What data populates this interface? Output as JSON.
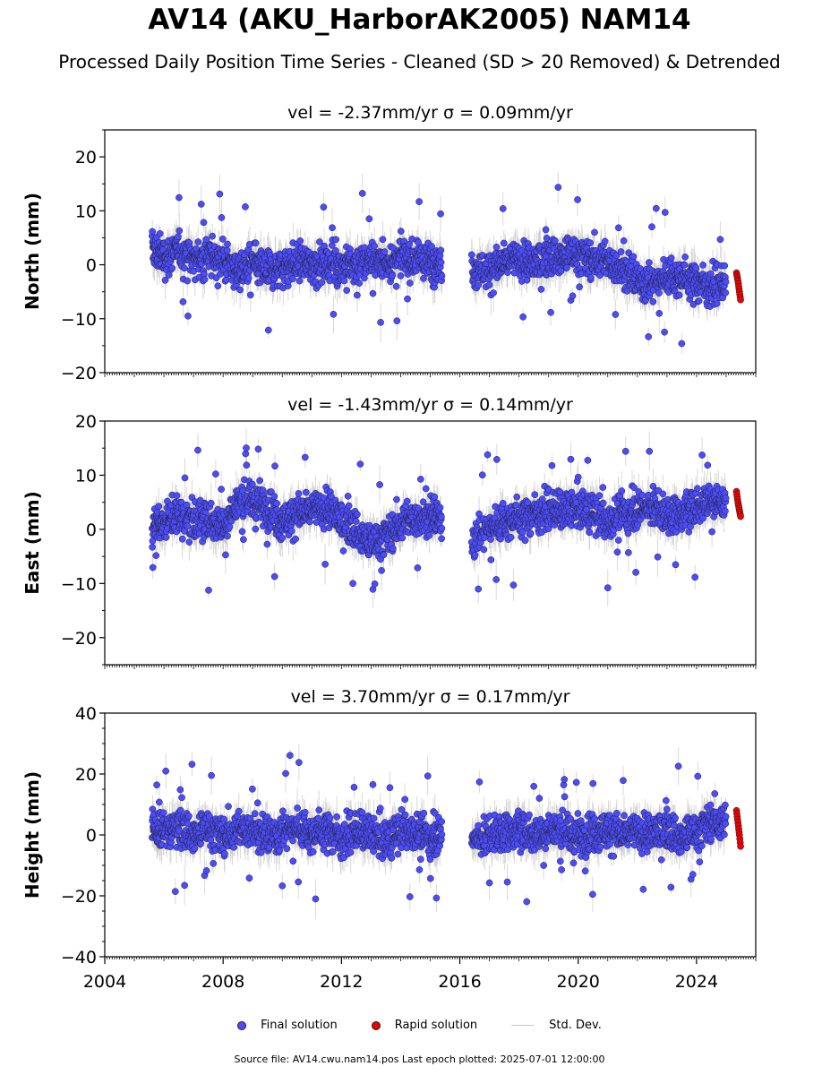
{
  "title": "AV14 (AKU_HarborAK2005) NAM14",
  "subtitle": "Processed Daily Position Time Series - Cleaned (SD > 20 Removed) & Detrended",
  "legend": {
    "final_label": "Final solution",
    "rapid_label": "Rapid solution",
    "std_label": "Std. Dev."
  },
  "footer": "Source file: AV14.cwu.nam14.pos  Last epoch plotted: 2025-07-01 12:00:00",
  "colors": {
    "final": "#4b4bff",
    "rapid": "#ee0000",
    "std": "#c0c0c0",
    "edge": "#222222"
  },
  "chart_data": [
    {
      "type": "scatter",
      "title": "vel = -2.37mm/yr   σ = 0.09mm/yr",
      "ylabel": "North (mm)",
      "xlim": [
        2004,
        2026
      ],
      "ylim": [
        -20,
        25
      ],
      "yticks": [
        -20,
        -10,
        0,
        10,
        20
      ],
      "grid": false,
      "series": [
        {
          "name": "Final solution",
          "points": [
            [
              2005.6,
              3.0
            ],
            [
              2006.0,
              1.5
            ],
            [
              2006.5,
              2.5
            ],
            [
              2007.0,
              1.0
            ],
            [
              2007.5,
              1.5
            ],
            [
              2008.0,
              1.0
            ],
            [
              2008.5,
              -1.0
            ],
            [
              2009.0,
              0.0
            ],
            [
              2009.5,
              -1.0
            ],
            [
              2010.0,
              -0.5
            ],
            [
              2010.5,
              0.5
            ],
            [
              2011.0,
              0.0
            ],
            [
              2011.5,
              0.5
            ],
            [
              2012.0,
              -0.5
            ],
            [
              2012.5,
              0.0
            ],
            [
              2013.0,
              1.0
            ],
            [
              2013.5,
              0.5
            ],
            [
              2014.0,
              1.5
            ],
            [
              2014.5,
              1.0
            ],
            [
              2015.0,
              0.5
            ],
            [
              2015.4,
              0.5
            ],
            [
              2016.4,
              -0.5
            ],
            [
              2017.0,
              -1.0
            ],
            [
              2017.5,
              0.5
            ],
            [
              2018.0,
              1.0
            ],
            [
              2018.5,
              0.0
            ],
            [
              2019.0,
              1.5
            ],
            [
              2019.5,
              1.5
            ],
            [
              2020.0,
              2.0
            ],
            [
              2020.5,
              1.0
            ],
            [
              2021.0,
              0.5
            ],
            [
              2021.5,
              -0.5
            ],
            [
              2022.0,
              -3.0
            ],
            [
              2022.5,
              -3.5
            ],
            [
              2023.0,
              -2.0
            ],
            [
              2023.5,
              -2.5
            ],
            [
              2024.0,
              -3.0
            ],
            [
              2024.5,
              -4.0
            ],
            [
              2025.0,
              -3.5
            ]
          ]
        },
        {
          "name": "Rapid solution",
          "points": [
            [
              2025.35,
              -1.5
            ],
            [
              2025.4,
              -3.0
            ],
            [
              2025.45,
              -5.0
            ],
            [
              2025.5,
              -7.0
            ]
          ]
        }
      ]
    },
    {
      "type": "scatter",
      "title": "vel = -1.43mm/yr   σ = 0.14mm/yr",
      "ylabel": "East (mm)",
      "xlim": [
        2004,
        2026
      ],
      "ylim": [
        -25,
        20
      ],
      "yticks": [
        -20,
        -10,
        0,
        10,
        20
      ],
      "grid": false,
      "series": [
        {
          "name": "Final solution",
          "points": [
            [
              2005.6,
              0.5
            ],
            [
              2006.0,
              1.5
            ],
            [
              2006.5,
              2.5
            ],
            [
              2007.0,
              2.0
            ],
            [
              2007.5,
              1.5
            ],
            [
              2008.0,
              1.0
            ],
            [
              2008.5,
              5.0
            ],
            [
              2009.0,
              5.5
            ],
            [
              2009.5,
              4.0
            ],
            [
              2010.0,
              1.5
            ],
            [
              2010.5,
              3.0
            ],
            [
              2011.0,
              3.5
            ],
            [
              2011.5,
              4.0
            ],
            [
              2012.0,
              1.5
            ],
            [
              2012.5,
              0.0
            ],
            [
              2013.0,
              -3.0
            ],
            [
              2013.5,
              -1.0
            ],
            [
              2014.0,
              1.0
            ],
            [
              2014.5,
              2.0
            ],
            [
              2015.0,
              2.5
            ],
            [
              2015.4,
              1.5
            ],
            [
              2016.4,
              -2.0
            ],
            [
              2017.0,
              0.5
            ],
            [
              2017.5,
              1.5
            ],
            [
              2018.0,
              2.0
            ],
            [
              2018.5,
              3.0
            ],
            [
              2019.0,
              3.5
            ],
            [
              2019.5,
              3.0
            ],
            [
              2020.0,
              4.0
            ],
            [
              2020.5,
              3.0
            ],
            [
              2021.0,
              1.0
            ],
            [
              2021.5,
              3.0
            ],
            [
              2022.0,
              3.5
            ],
            [
              2022.5,
              4.5
            ],
            [
              2023.0,
              2.5
            ],
            [
              2023.5,
              3.0
            ],
            [
              2024.0,
              4.0
            ],
            [
              2024.5,
              6.0
            ],
            [
              2025.0,
              4.5
            ]
          ]
        },
        {
          "name": "Rapid solution",
          "points": [
            [
              2025.35,
              7.0
            ],
            [
              2025.4,
              5.0
            ],
            [
              2025.45,
              3.5
            ],
            [
              2025.5,
              2.0
            ]
          ]
        }
      ]
    },
    {
      "type": "scatter",
      "title": "vel = 3.70mm/yr   σ = 0.17mm/yr",
      "ylabel": "Height (mm)",
      "xlim": [
        2004,
        2026
      ],
      "ylim": [
        -40,
        40
      ],
      "yticks": [
        -40,
        -20,
        0,
        20,
        40
      ],
      "xticks": [
        2004,
        2008,
        2012,
        2016,
        2020,
        2024
      ],
      "grid": false,
      "series": [
        {
          "name": "Final solution",
          "points": [
            [
              2005.6,
              2.0
            ],
            [
              2006.0,
              1.0
            ],
            [
              2006.5,
              3.0
            ],
            [
              2007.0,
              0.0
            ],
            [
              2007.5,
              2.0
            ],
            [
              2008.0,
              0.0
            ],
            [
              2008.5,
              1.0
            ],
            [
              2009.0,
              2.5
            ],
            [
              2009.5,
              -1.0
            ],
            [
              2010.0,
              1.0
            ],
            [
              2010.5,
              3.0
            ],
            [
              2011.0,
              0.0
            ],
            [
              2011.5,
              2.0
            ],
            [
              2012.0,
              -1.0
            ],
            [
              2012.5,
              1.0
            ],
            [
              2013.0,
              0.0
            ],
            [
              2013.5,
              -2.0
            ],
            [
              2014.0,
              1.0
            ],
            [
              2014.5,
              0.5
            ],
            [
              2015.0,
              -1.0
            ],
            [
              2015.4,
              0.0
            ],
            [
              2016.4,
              -1.0
            ],
            [
              2017.0,
              0.0
            ],
            [
              2017.5,
              1.0
            ],
            [
              2018.0,
              1.5
            ],
            [
              2018.5,
              0.0
            ],
            [
              2019.0,
              2.0
            ],
            [
              2019.5,
              1.0
            ],
            [
              2020.0,
              -0.5
            ],
            [
              2020.5,
              1.0
            ],
            [
              2021.0,
              2.0
            ],
            [
              2021.5,
              0.0
            ],
            [
              2022.0,
              1.0
            ],
            [
              2022.5,
              0.0
            ],
            [
              2023.0,
              2.0
            ],
            [
              2023.5,
              -1.0
            ],
            [
              2024.0,
              1.0
            ],
            [
              2024.5,
              5.0
            ],
            [
              2025.0,
              3.0
            ]
          ]
        },
        {
          "name": "Rapid solution",
          "points": [
            [
              2025.35,
              8.0
            ],
            [
              2025.4,
              4.0
            ],
            [
              2025.45,
              0.0
            ],
            [
              2025.5,
              -5.0
            ]
          ]
        }
      ]
    }
  ]
}
